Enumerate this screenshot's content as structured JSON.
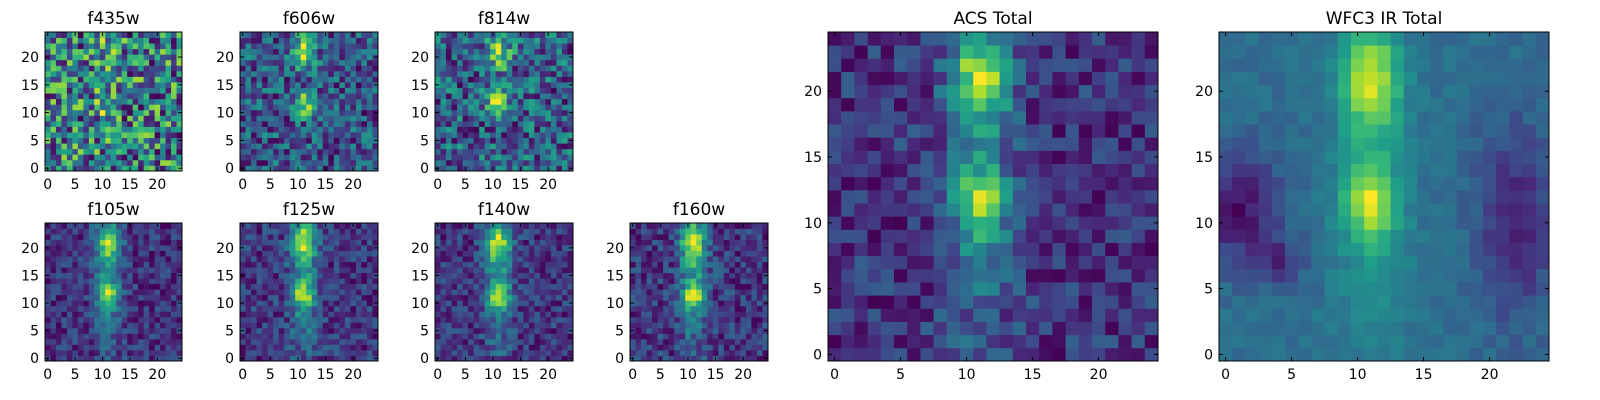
{
  "chart_data": [
    {
      "type": "heatmap",
      "title": "f435w",
      "grid_size": 25,
      "xlim": [
        0,
        24
      ],
      "ylim": [
        0,
        24
      ],
      "xticks": [
        "0",
        "5",
        "10",
        "15",
        "20"
      ],
      "yticks": [
        "0",
        "5",
        "10",
        "15",
        "20"
      ],
      "colormap": "viridis",
      "noise": "high",
      "structure": "faint compact source near (11, 11) and (11, 21)",
      "background_level": 0.55
    },
    {
      "type": "heatmap",
      "title": "f606w",
      "grid_size": 25,
      "xlim": [
        0,
        24
      ],
      "ylim": [
        0,
        24
      ],
      "xticks": [
        "0",
        "5",
        "10",
        "15",
        "20"
      ],
      "yticks": [
        "0",
        "5",
        "10",
        "15",
        "20"
      ],
      "colormap": "viridis",
      "noise": "high",
      "structure": "two knots at (11, 21) and (11, 12)",
      "background_level": 0.45
    },
    {
      "type": "heatmap",
      "title": "f814w",
      "grid_size": 25,
      "xlim": [
        0,
        24
      ],
      "ylim": [
        0,
        24
      ],
      "xticks": [
        "0",
        "5",
        "10",
        "15",
        "20"
      ],
      "yticks": [
        "0",
        "5",
        "10",
        "15",
        "20"
      ],
      "colormap": "viridis",
      "noise": "high",
      "structure": "two knots at (11, 21) and (11, 12)",
      "background_level": 0.45
    },
    {
      "type": "heatmap",
      "title": "f105w",
      "grid_size": 25,
      "xlim": [
        0,
        24
      ],
      "ylim": [
        0,
        24
      ],
      "xticks": [
        "0",
        "5",
        "10",
        "15",
        "20"
      ],
      "yticks": [
        "0",
        "5",
        "10",
        "15",
        "20"
      ],
      "colormap": "viridis",
      "noise": "medium",
      "structure": "vertical band at x≈11 with knots at y≈21 and y≈12",
      "background_level": 0.4
    },
    {
      "type": "heatmap",
      "title": "f125w",
      "grid_size": 25,
      "xlim": [
        0,
        24
      ],
      "ylim": [
        0,
        24
      ],
      "xticks": [
        "0",
        "5",
        "10",
        "15",
        "20"
      ],
      "yticks": [
        "0",
        "5",
        "10",
        "15",
        "20"
      ],
      "colormap": "viridis",
      "noise": "medium",
      "structure": "vertical band at x≈11 with knots at y≈21 and y≈12",
      "background_level": 0.4
    },
    {
      "type": "heatmap",
      "title": "f140w",
      "grid_size": 25,
      "xlim": [
        0,
        24
      ],
      "ylim": [
        0,
        24
      ],
      "xticks": [
        "0",
        "5",
        "10",
        "15",
        "20"
      ],
      "yticks": [
        "0",
        "5",
        "10",
        "15",
        "20"
      ],
      "colormap": "viridis",
      "noise": "medium",
      "structure": "vertical band at x≈11 with knots at y≈21 and y≈12",
      "background_level": 0.4
    },
    {
      "type": "heatmap",
      "title": "f160w",
      "grid_size": 25,
      "xlim": [
        0,
        24
      ],
      "ylim": [
        0,
        24
      ],
      "xticks": [
        "0",
        "5",
        "10",
        "15",
        "20"
      ],
      "yticks": [
        "0",
        "5",
        "10",
        "15",
        "20"
      ],
      "colormap": "viridis",
      "noise": "medium",
      "structure": "vertical band at x≈11 with knots at y≈21 and y≈12",
      "background_level": 0.35
    },
    {
      "type": "heatmap",
      "title": "ACS Total",
      "grid_size": 25,
      "xlim": [
        0,
        24
      ],
      "ylim": [
        0,
        24
      ],
      "xticks": [
        "0",
        "5",
        "10",
        "15",
        "20"
      ],
      "yticks": [
        "0",
        "5",
        "10",
        "15",
        "20"
      ],
      "colormap": "viridis",
      "noise": "medium",
      "structure": "two bright knots at (11, 21) and (11, 11)",
      "background_level": 0.5
    },
    {
      "type": "heatmap",
      "title": "WFC3 IR Total",
      "grid_size": 25,
      "xlim": [
        0,
        24
      ],
      "ylim": [
        0,
        24
      ],
      "xticks": [
        "0",
        "5",
        "10",
        "15",
        "20"
      ],
      "yticks": [
        "0",
        "5",
        "10",
        "15",
        "20"
      ],
      "colormap": "viridis",
      "noise": "low",
      "structure": "smooth vertical band at x≈11, peaks at y≈21 and y≈12, dark patches on left and right edges",
      "background_level": 0.35
    }
  ]
}
